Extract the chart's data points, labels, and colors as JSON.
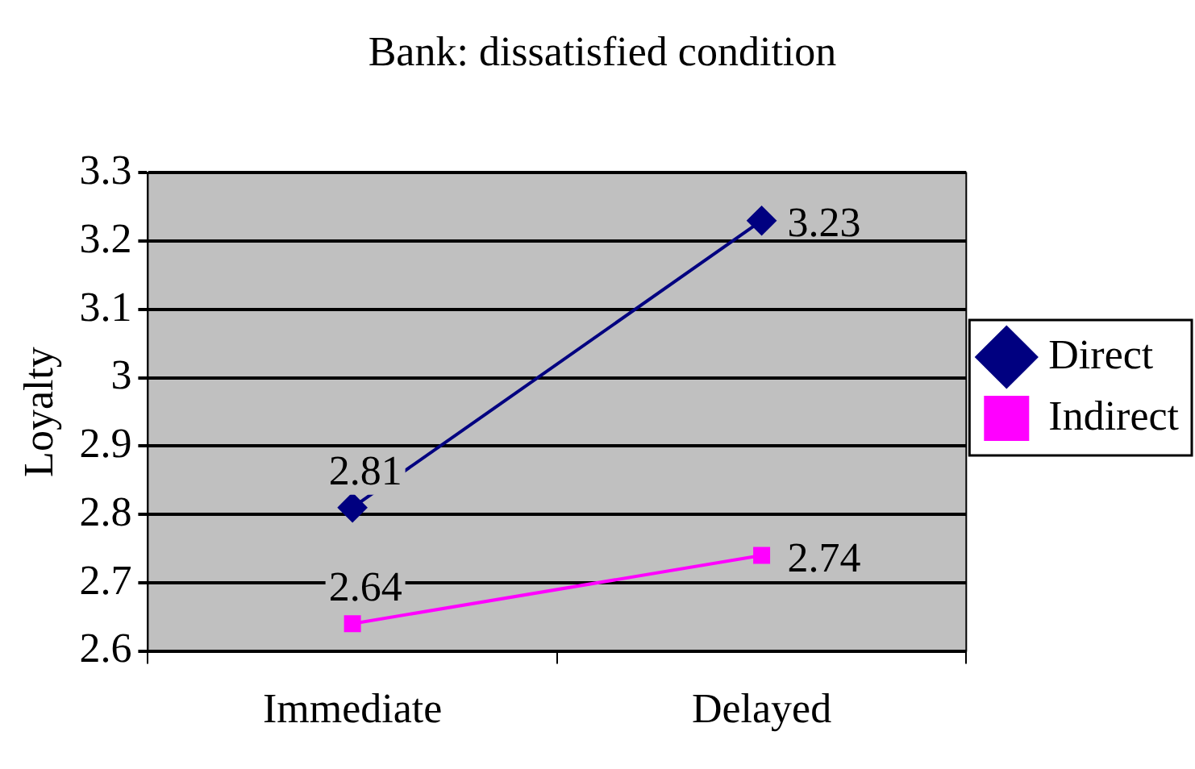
{
  "chart_data": {
    "type": "line",
    "title": "Bank: dissatisfied condition",
    "ylabel": "Loyalty",
    "categories": [
      "Immediate",
      "Delayed"
    ],
    "series": [
      {
        "name": "Direct",
        "color": "#000080",
        "marker": "diamond",
        "values": [
          2.81,
          3.23
        ]
      },
      {
        "name": "Indirect",
        "color": "#ff00ff",
        "marker": "square",
        "values": [
          2.64,
          2.74
        ]
      }
    ],
    "ylim": [
      2.6,
      3.3
    ],
    "yticks": [
      2.6,
      2.7,
      2.8,
      2.9,
      3,
      3.1,
      3.2,
      3.3
    ],
    "grid": "y",
    "legend": "right",
    "data_labels": true
  }
}
